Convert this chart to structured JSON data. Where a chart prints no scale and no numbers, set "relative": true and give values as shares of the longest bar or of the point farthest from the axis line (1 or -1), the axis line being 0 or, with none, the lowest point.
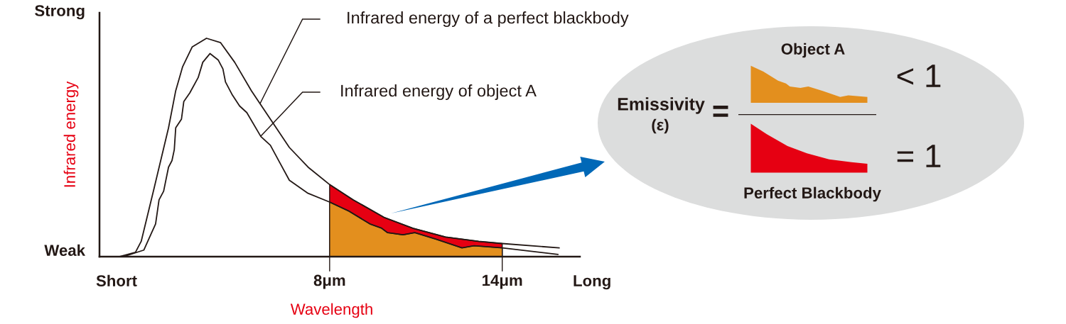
{
  "chart_data": {
    "type": "line",
    "relative": true,
    "xlabel": "Wavelength",
    "ylabel": "Infrared energy",
    "xlim": [
      0,
      16.7
    ],
    "xticks": [
      {
        "value": 8,
        "label": "8μm"
      },
      {
        "value": 14,
        "label": "14μm"
      }
    ],
    "series": [
      {
        "type": "area",
        "color": "#e60012",
        "x": [
          8,
          8.82,
          9.89,
          10.89,
          12.03,
          13.18,
          14
        ],
        "values": [
          0.33,
          0.26,
          0.18,
          0.13,
          0.09,
          0.07,
          0.06
        ]
      },
      {
        "type": "area",
        "color": "#e38f1e",
        "x": [
          8,
          8.65,
          9.4,
          9.81,
          10.01,
          10.55,
          10.96,
          11.7,
          12.6,
          13.02,
          14
        ],
        "values": [
          0.25,
          0.21,
          0.15,
          0.13,
          0.11,
          0.1,
          0.11,
          0.08,
          0.04,
          0.05,
          0.04
        ]
      },
      {
        "type": "line",
        "color": "#231815",
        "x": [
          0.68,
          1.25,
          1.45,
          1.91,
          2.4,
          2.65,
          2.89,
          3.22,
          3.72,
          4.21,
          4.7,
          5.28,
          5.94,
          6.6,
          7.25,
          8,
          8.82,
          9.89,
          10.89,
          12.03,
          13.18,
          14,
          15.98
        ],
        "values": [
          0,
          0.02,
          0.07,
          0.32,
          0.59,
          0.76,
          0.87,
          0.96,
          1,
          0.98,
          0.89,
          0.76,
          0.63,
          0.5,
          0.41,
          0.33,
          0.26,
          0.18,
          0.13,
          0.09,
          0.07,
          0.06,
          0.04
        ]
      },
      {
        "type": "line",
        "color": "#231815",
        "x": [
          0.83,
          1.54,
          1.78,
          1.95,
          2.07,
          2.23,
          2.4,
          2.52,
          2.6,
          2.65,
          2.85,
          2.93,
          3.14,
          3.43,
          3.59,
          3.84,
          4.13,
          4.29,
          4.38,
          4.62,
          4.87,
          5.12,
          5.61,
          5.94,
          6.27,
          6.6,
          7.25,
          8,
          8.65,
          9.4,
          9.81,
          10.01,
          10.55,
          10.96,
          11.7,
          12.6,
          13.02,
          14,
          15.94
        ],
        "values": [
          0,
          0.03,
          0.1,
          0.15,
          0.26,
          0.3,
          0.41,
          0.44,
          0.49,
          0.59,
          0.63,
          0.71,
          0.75,
          0.82,
          0.89,
          0.93,
          0.9,
          0.86,
          0.8,
          0.74,
          0.69,
          0.66,
          0.55,
          0.51,
          0.43,
          0.35,
          0.29,
          0.25,
          0.21,
          0.15,
          0.13,
          0.11,
          0.1,
          0.11,
          0.08,
          0.04,
          0.05,
          0.04,
          0.01
        ]
      }
    ],
    "annotations": [
      "Infrared energy of a perfect blackbody",
      "Infrared energy of object A",
      "Strong",
      "Weak",
      "Short",
      "Long",
      "Emissivity",
      "(ε)",
      "=",
      "Object A",
      "Perfect Blackbody",
      "< 1",
      "= 1"
    ]
  }
}
